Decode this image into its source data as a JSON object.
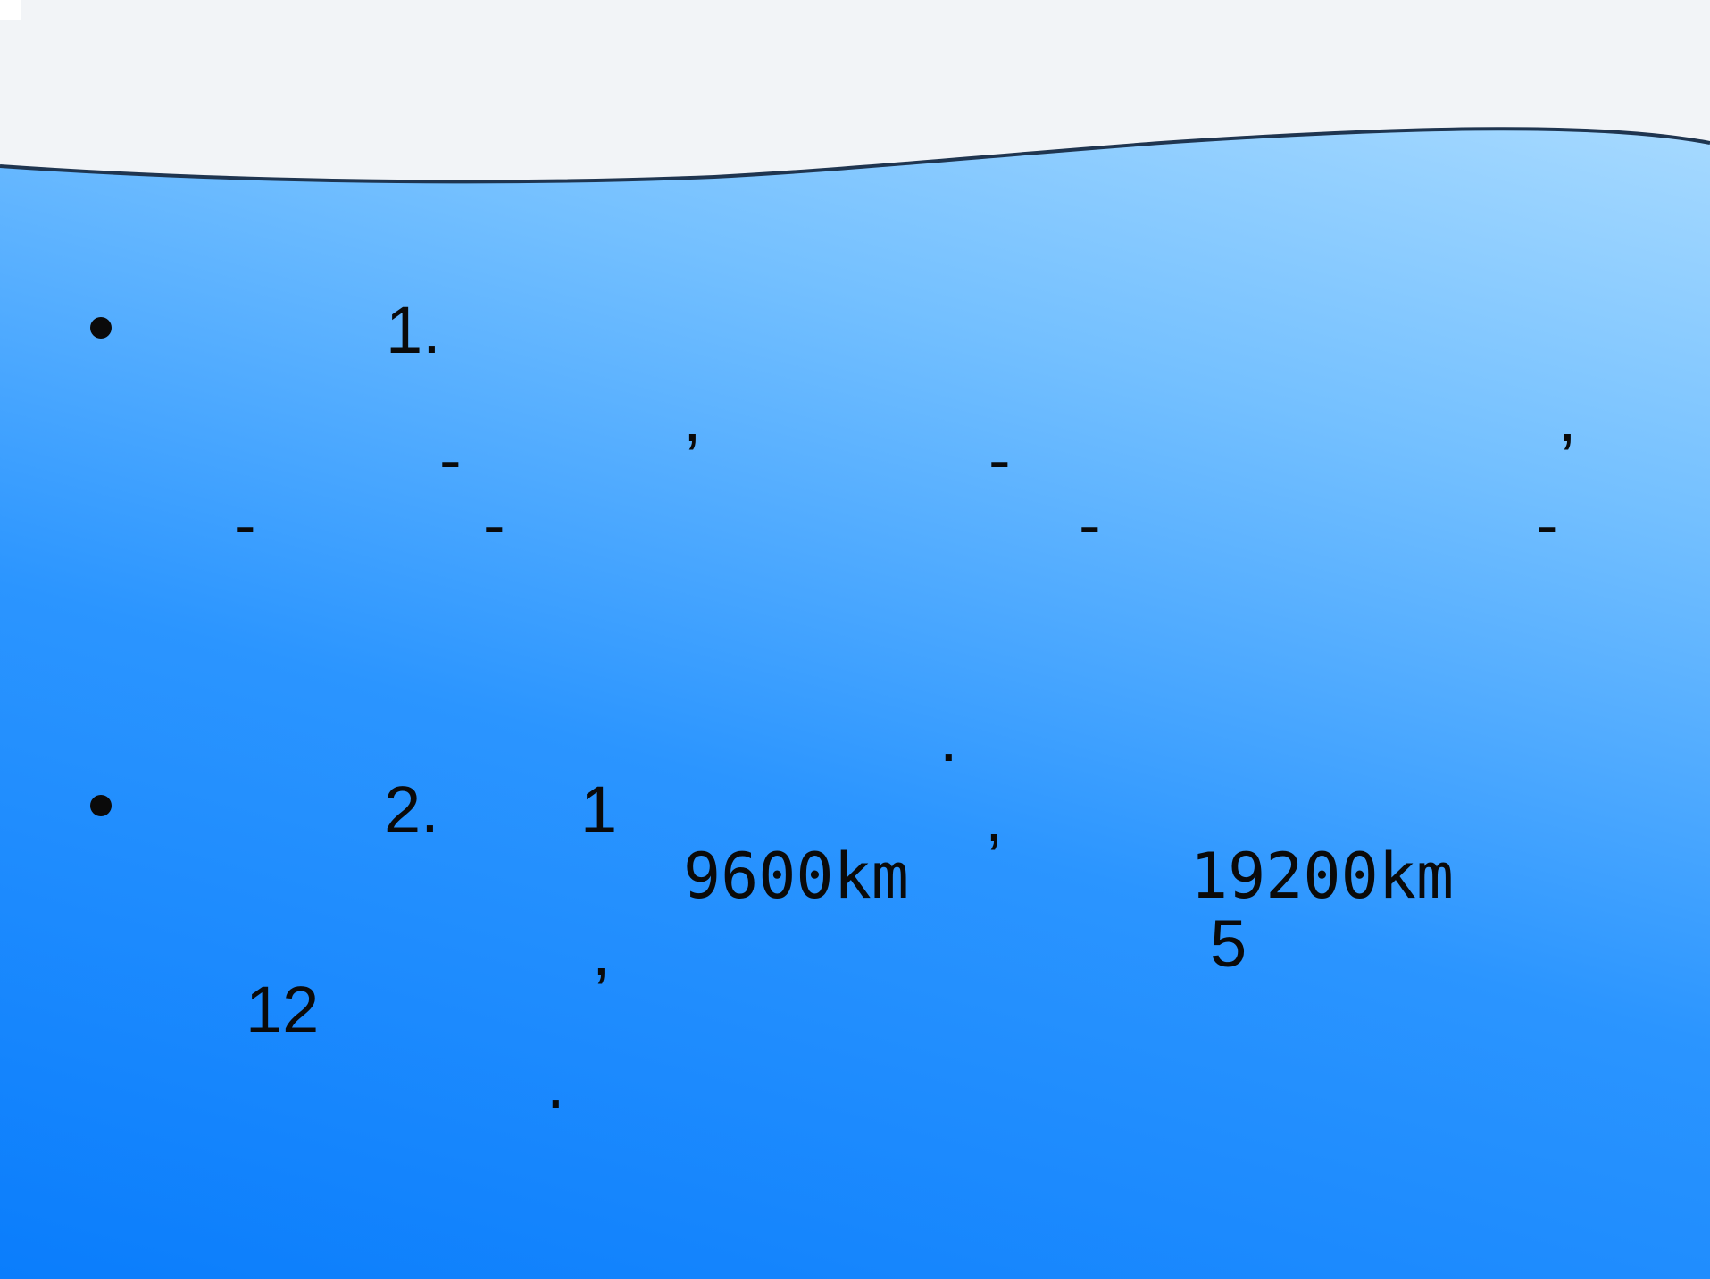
{
  "slide": {
    "item1": {
      "number": "1.",
      "comma_a": ",",
      "comma_b": ",",
      "dash_a": "-",
      "dash_b": "-",
      "dash_c": "-",
      "dash_d": "-",
      "dash_e": "-",
      "dash_f": "-",
      "period": "."
    },
    "item2": {
      "number": "2.",
      "num_1": "1",
      "comma_a": ",",
      "distance_a": "9600km",
      "distance_b": "19200km",
      "comma_b": ",",
      "num_5": "5",
      "num_12": "12",
      "period": "."
    }
  }
}
